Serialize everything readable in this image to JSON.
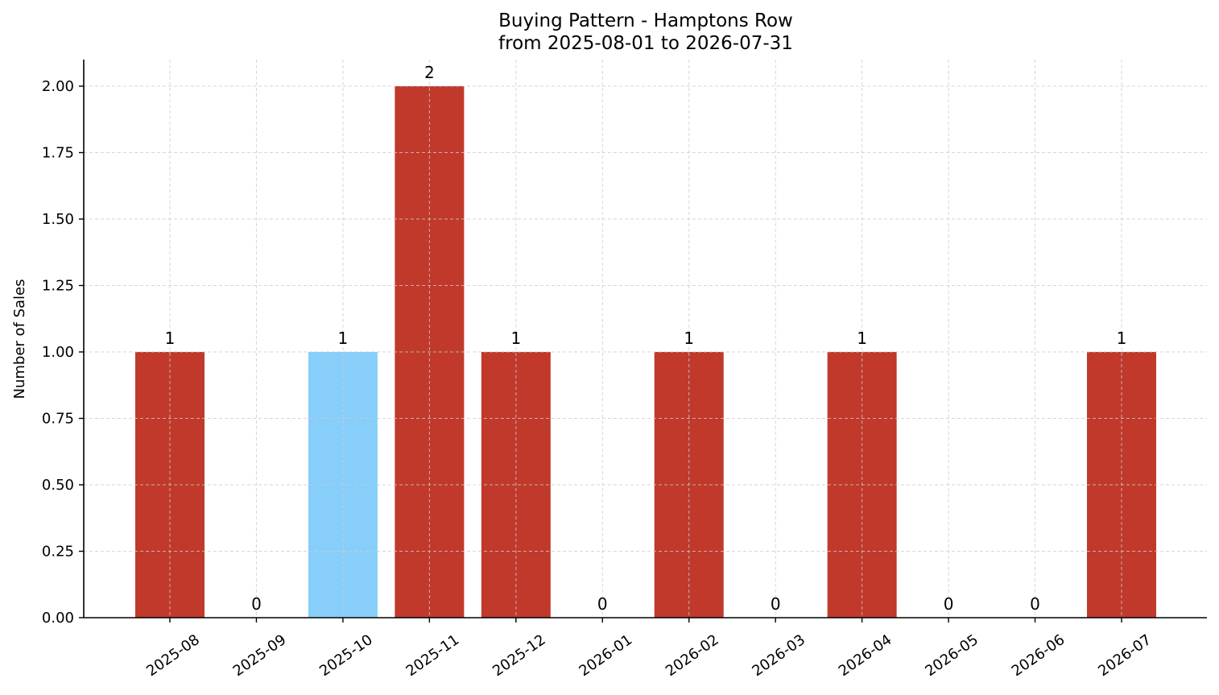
{
  "chart_data": {
    "type": "bar",
    "title": "Buying Pattern - Hamptons Row",
    "subtitle": "from 2025-08-01 to 2026-07-31",
    "xlabel": "",
    "ylabel": "Number of Sales",
    "categories": [
      "2025-08",
      "2025-09",
      "2025-10",
      "2025-11",
      "2025-12",
      "2026-01",
      "2026-02",
      "2026-03",
      "2026-04",
      "2026-05",
      "2026-06",
      "2026-07"
    ],
    "values": [
      1,
      0,
      1,
      2,
      1,
      0,
      1,
      0,
      1,
      0,
      0,
      1
    ],
    "data_labels": [
      "1",
      "0",
      "1",
      "2",
      "1",
      "0",
      "1",
      "0",
      "1",
      "0",
      "0",
      "1"
    ],
    "bar_colors": [
      "#c0392b",
      "#c0392b",
      "#87cefa",
      "#c0392b",
      "#c0392b",
      "#c0392b",
      "#c0392b",
      "#c0392b",
      "#c0392b",
      "#c0392b",
      "#c0392b",
      "#c0392b"
    ],
    "yticks": [
      0,
      0.25,
      0.5,
      0.75,
      1.0,
      1.25,
      1.5,
      1.75,
      2.0
    ],
    "ytick_labels": [
      "0.00",
      "0.25",
      "0.50",
      "0.75",
      "1.00",
      "1.25",
      "1.50",
      "1.75",
      "2.00"
    ],
    "ylim": [
      0,
      2.1
    ],
    "grid": true,
    "legend": "none"
  }
}
